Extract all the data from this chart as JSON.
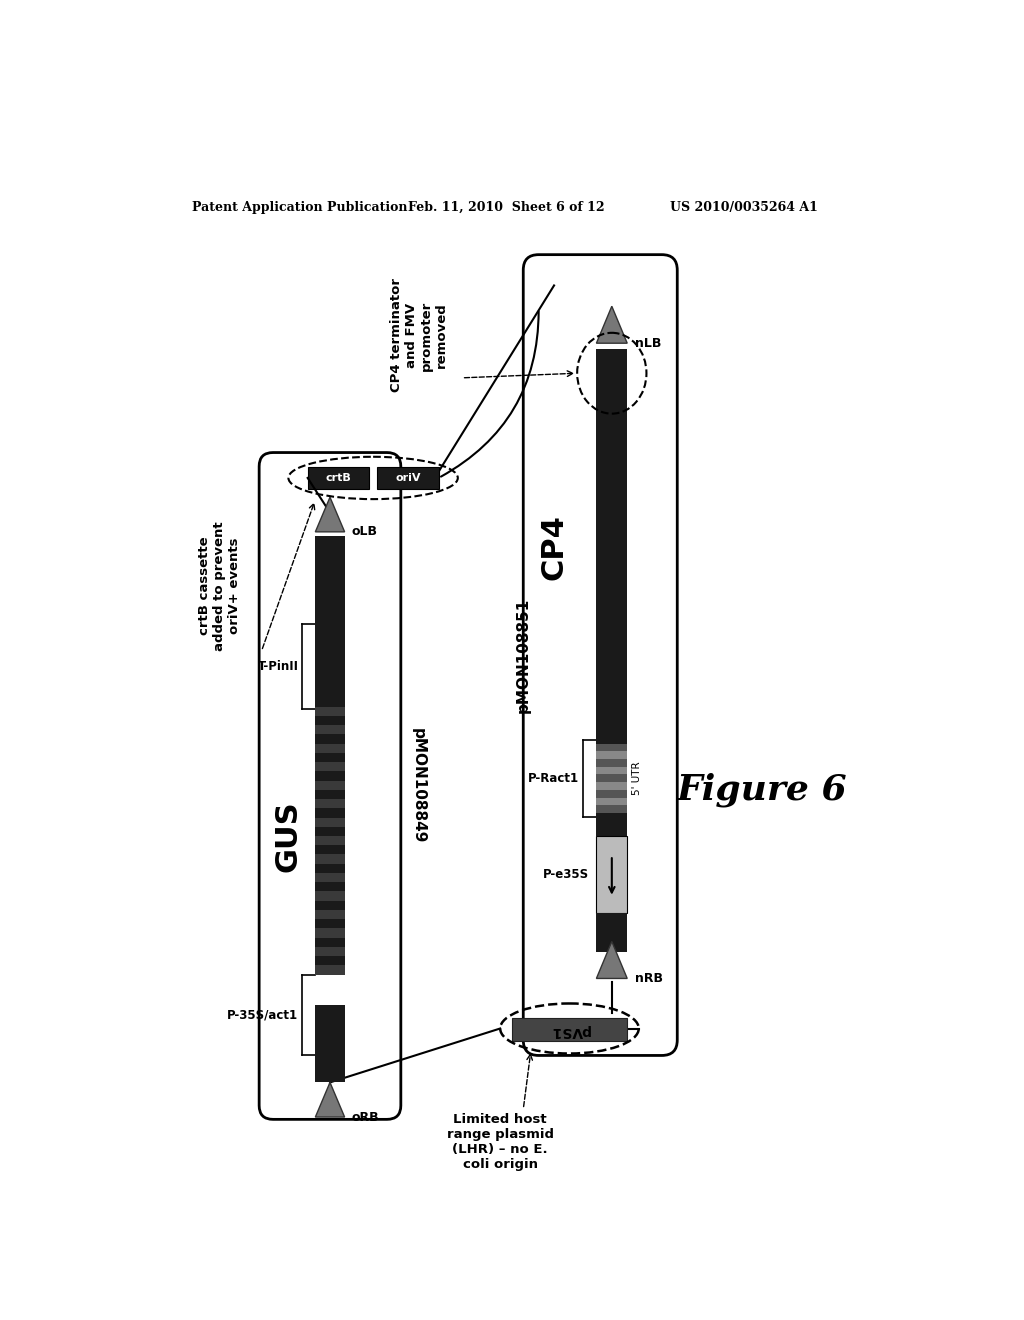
{
  "bg_color": "#ffffff",
  "header_text": "Patent Application Publication",
  "header_date": "Feb. 11, 2010  Sheet 6 of 12",
  "header_patent": "US 2010/0035264 A1",
  "figure_label": "Figure 6",
  "plasmid_left_label": "pMON108849",
  "plasmid_right_label": "pMON108851",
  "dark_color": "#1a1a1a",
  "dark2_color": "#2a2a2a",
  "gray_color": "#666666",
  "light_gray": "#bbbbbb",
  "mid_gray": "#777777",
  "stripe_gray": "#444444"
}
